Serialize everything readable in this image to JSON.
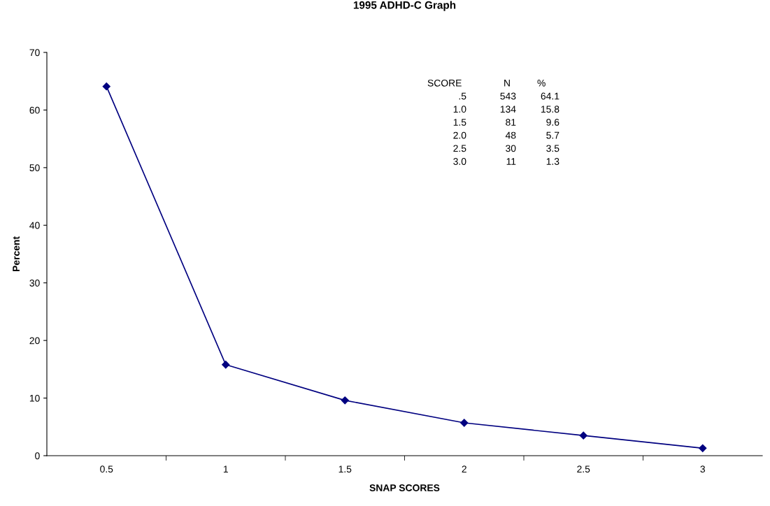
{
  "chart_data": {
    "type": "line",
    "title": "1995 ADHD-C Graph",
    "xlabel": "SNAP SCORES",
    "ylabel": "Percent",
    "categories": [
      "0.5",
      "1",
      "1.5",
      "2",
      "2.5",
      "3"
    ],
    "series": [
      {
        "color": "#000080",
        "values": [
          64.1,
          15.8,
          9.6,
          5.7,
          3.5,
          1.3
        ]
      }
    ],
    "ylim": [
      0,
      70
    ],
    "yticks": [
      0,
      10,
      20,
      30,
      40,
      50,
      60,
      70
    ],
    "grid": false,
    "legend": false,
    "marker": "diamond",
    "line_style": "solid",
    "annotations": [
      "SCORE N %",
      ".5 543 64.1",
      "1.0 134 15.8",
      "1.5 81 9.6",
      "2.0 48 5.7",
      "2.5 30 3.5",
      "3.0 11 1.3"
    ]
  }
}
